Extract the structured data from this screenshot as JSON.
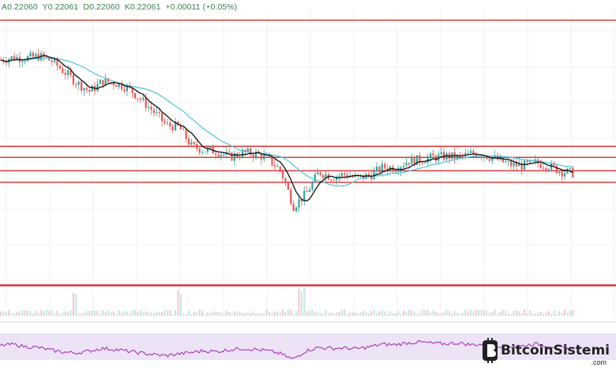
{
  "header": {
    "open": "A0.22060",
    "high": "Y0.22061",
    "low": "D0.22060",
    "close": "K0.22061",
    "change": "+0.00011 (+0.05%)"
  },
  "brand": {
    "name": "BitcoinSistemi",
    "domain": ".com"
  },
  "colors": {
    "up": "#26a69a",
    "down": "#ef5350",
    "level_line": "#d32f2f",
    "fast_ma": "#111111",
    "slow_ma": "#4fc3d9",
    "rsi": "#9c27b0",
    "rsi_band": "#ede3f7"
  },
  "chart_data": {
    "type": "candlestick",
    "price_axis": {
      "min": 0.185,
      "max": 0.235
    },
    "horizontal_levels": [
      0.2335,
      0.2128,
      0.211,
      0.2088,
      0.2069,
      0.19
    ],
    "close_path": [
      0.227,
      0.2274,
      0.2273,
      0.2276,
      0.2268,
      0.225,
      0.2232,
      0.2218,
      0.2235,
      0.2232,
      0.2224,
      0.2205,
      0.2185,
      0.2163,
      0.216,
      0.2128,
      0.2122,
      0.212,
      0.211,
      0.2118,
      0.2116,
      0.2108,
      0.2088,
      0.203,
      0.205,
      0.2086,
      0.2078,
      0.2082,
      0.2076,
      0.208,
      0.2093,
      0.2093,
      0.2104,
      0.2106,
      0.211,
      0.2112,
      0.211,
      0.2116,
      0.2114,
      0.2106,
      0.2098,
      0.2096,
      0.2101,
      0.2097,
      0.2087,
      0.2084
    ],
    "rsi_path": [
      52,
      55,
      50,
      48,
      42,
      38,
      36,
      40,
      46,
      44,
      40,
      36,
      33,
      30,
      34,
      37,
      41,
      39,
      43,
      46,
      44,
      41,
      35,
      22,
      40,
      48,
      46,
      47,
      45,
      49,
      55,
      54,
      58,
      60,
      57,
      56,
      58,
      54,
      55,
      52,
      50,
      51,
      56,
      52,
      48,
      45
    ]
  }
}
